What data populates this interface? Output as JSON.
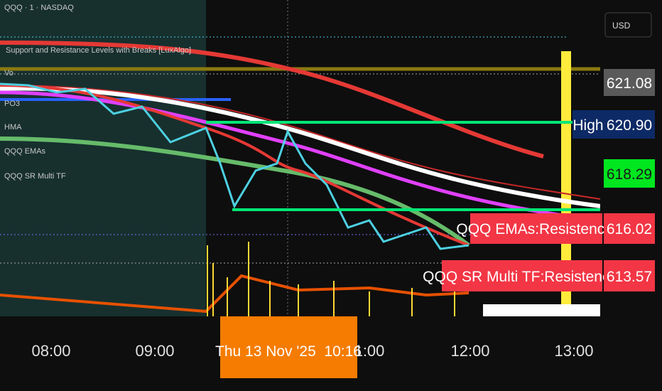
{
  "header": {
    "symbol": "QQQ · 1 · NASDAQ"
  },
  "indicators": [
    "Support and Resistance Levels with Breaks [LuxAlgo]",
    "Vo",
    "PO3",
    "HMA",
    "QQQ EMAs",
    "QQQ SR Multi TF"
  ],
  "price_axis": {
    "currency": "USD",
    "labels": [
      "621.08",
      "620.90",
      "618.29",
      "616.02",
      "613.57"
    ]
  },
  "line_tags": [
    "High",
    "QQQ EMAs:Resistencia",
    "QQQ SR Multi TF:Resistencia"
  ],
  "time_axis": {
    "labels": [
      "08:00",
      "09:00",
      "1:00",
      "12:00",
      "13:00"
    ],
    "cursor": "Thu 13 Nov '25  10:16"
  }
}
